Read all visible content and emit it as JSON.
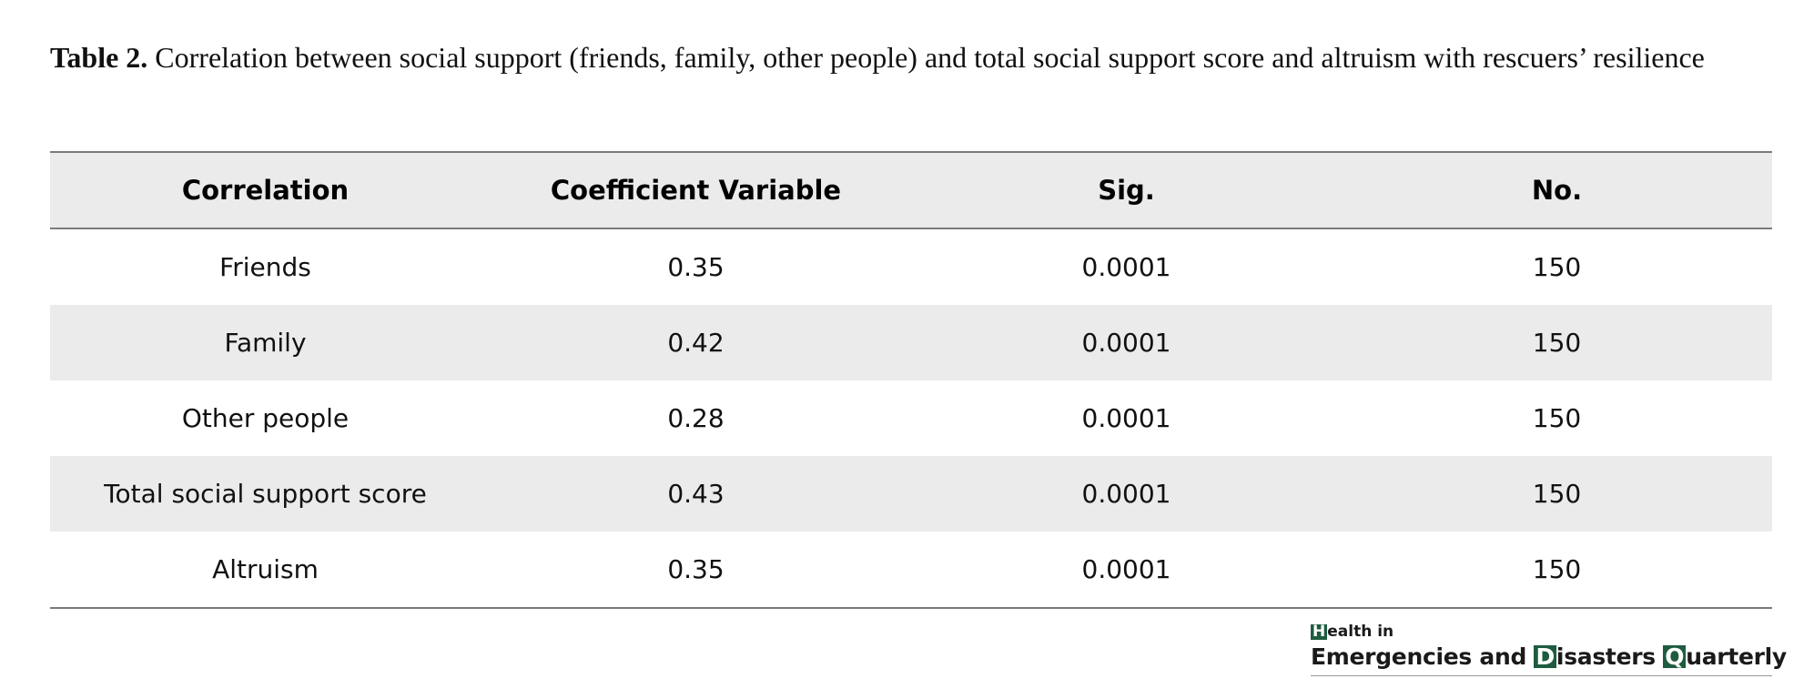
{
  "caption": {
    "label": "Table 2.",
    "text": " Correlation between social support (friends, family, other people) and total social support score and altruism with rescuers’ resilience"
  },
  "table": {
    "headers": [
      "Correlation",
      "Coefficient Variable",
      "Sig.",
      "No."
    ],
    "rows": [
      [
        "Friends",
        "0.35",
        "0.0001",
        "150"
      ],
      [
        "Family",
        "0.42",
        "0.0001",
        "150"
      ],
      [
        "Other people",
        "0.28",
        "0.0001",
        "150"
      ],
      [
        "Total social support score",
        "0.43",
        "0.0001",
        "150"
      ],
      [
        "Altruism",
        "0.35",
        "0.0001",
        "150"
      ]
    ],
    "shade_color": "#ebebeb",
    "rule_color": "#7a7a7a"
  },
  "logo": {
    "line1_initial": "H",
    "line1_rest": "ealth in",
    "word1_rest": "Emergencies and ",
    "word2_initial": "D",
    "word2_rest": "isasters ",
    "word3_initial": "Q",
    "word3_rest": "uarterly",
    "brand_color": "#1f5c3f"
  }
}
